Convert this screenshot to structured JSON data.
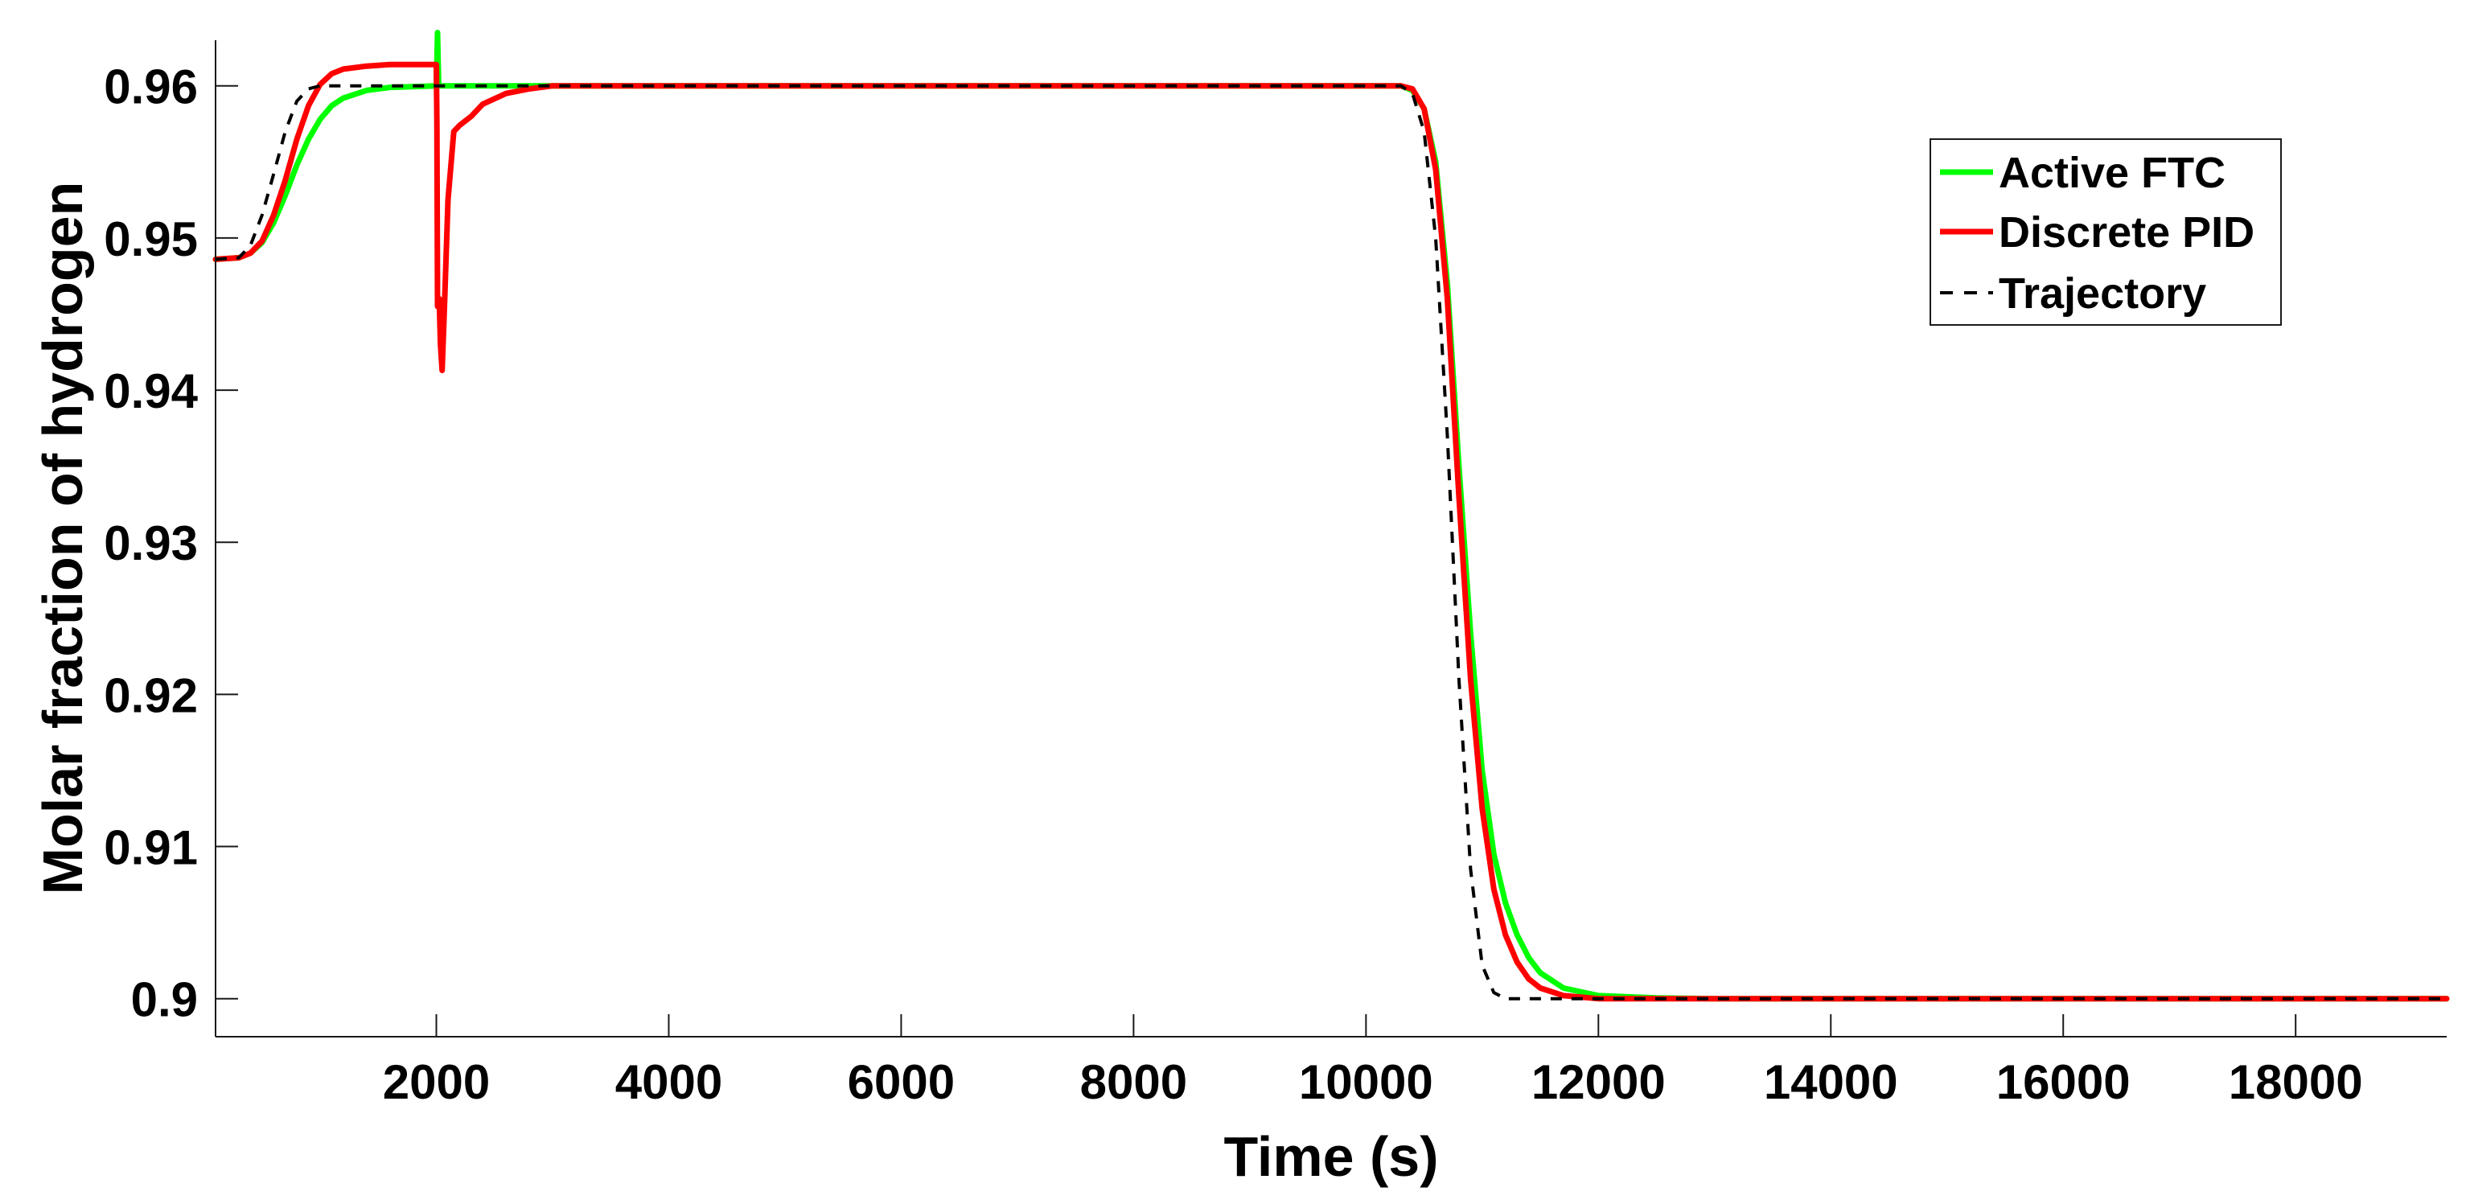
{
  "chart_data": {
    "type": "line",
    "xlabel": "Time (s)",
    "ylabel": "Molar fraction of hydrogen",
    "xlim": [
      100,
      19300
    ],
    "ylim": [
      0.8975,
      0.963
    ],
    "xticks": [
      2000,
      4000,
      6000,
      8000,
      10000,
      12000,
      14000,
      16000,
      18000
    ],
    "xtick_labels": [
      "2000",
      "4000",
      "6000",
      "8000",
      "10000",
      "12000",
      "14000",
      "16000",
      "18000"
    ],
    "yticks": [
      0.9,
      0.91,
      0.92,
      0.93,
      0.94,
      0.95,
      0.96
    ],
    "ytick_labels": [
      "0.9",
      "0.91",
      "0.92",
      "0.93",
      "0.94",
      "0.95",
      "0.96"
    ],
    "grid": false,
    "legend_position": "top-right",
    "series": [
      {
        "name": "Active FTC",
        "color": "#00ff00",
        "style": "solid",
        "points": [
          [
            100,
            0.9486
          ],
          [
            300,
            0.9487
          ],
          [
            400,
            0.949
          ],
          [
            500,
            0.9497
          ],
          [
            600,
            0.951
          ],
          [
            700,
            0.9528
          ],
          [
            800,
            0.9548
          ],
          [
            900,
            0.9565
          ],
          [
            1000,
            0.9578
          ],
          [
            1100,
            0.9587
          ],
          [
            1200,
            0.9592
          ],
          [
            1400,
            0.9597
          ],
          [
            1600,
            0.9599
          ],
          [
            1800,
            0.95995
          ],
          [
            2000,
            0.96
          ],
          [
            2010,
            0.9635
          ],
          [
            2020,
            0.96
          ],
          [
            2200,
            0.96
          ],
          [
            10000,
            0.96
          ],
          [
            10300,
            0.96
          ],
          [
            10400,
            0.9597
          ],
          [
            10500,
            0.9585
          ],
          [
            10600,
            0.955
          ],
          [
            10700,
            0.947
          ],
          [
            10800,
            0.935
          ],
          [
            10900,
            0.924
          ],
          [
            11000,
            0.915
          ],
          [
            11100,
            0.9095
          ],
          [
            11200,
            0.9063
          ],
          [
            11300,
            0.9042
          ],
          [
            11400,
            0.9027
          ],
          [
            11500,
            0.9017
          ],
          [
            11700,
            0.9007
          ],
          [
            12000,
            0.9002
          ],
          [
            12500,
            0.90005
          ],
          [
            13000,
            0.9
          ],
          [
            19300,
            0.9
          ]
        ]
      },
      {
        "name": "Discrete PID",
        "color": "#ff0000",
        "style": "solid",
        "points": [
          [
            100,
            0.9486
          ],
          [
            300,
            0.9487
          ],
          [
            400,
            0.949
          ],
          [
            500,
            0.9498
          ],
          [
            600,
            0.9515
          ],
          [
            700,
            0.9538
          ],
          [
            800,
            0.9565
          ],
          [
            900,
            0.9587
          ],
          [
            1000,
            0.9601
          ],
          [
            1100,
            0.9608
          ],
          [
            1200,
            0.9611
          ],
          [
            1400,
            0.9613
          ],
          [
            1600,
            0.9614
          ],
          [
            1800,
            0.9614
          ],
          [
            2000,
            0.9614
          ],
          [
            2005,
            0.9575
          ],
          [
            2010,
            0.9455
          ],
          [
            2025,
            0.946
          ],
          [
            2035,
            0.943
          ],
          [
            2050,
            0.9413
          ],
          [
            2070,
            0.9455
          ],
          [
            2100,
            0.9525
          ],
          [
            2150,
            0.957
          ],
          [
            2200,
            0.9574
          ],
          [
            2300,
            0.958
          ],
          [
            2400,
            0.9588
          ],
          [
            2600,
            0.9595
          ],
          [
            2800,
            0.9598
          ],
          [
            3000,
            0.96
          ],
          [
            10000,
            0.96
          ],
          [
            10300,
            0.96
          ],
          [
            10400,
            0.9598
          ],
          [
            10500,
            0.9585
          ],
          [
            10600,
            0.9545
          ],
          [
            10700,
            0.946
          ],
          [
            10800,
            0.933
          ],
          [
            10900,
            0.921
          ],
          [
            11000,
            0.9125
          ],
          [
            11100,
            0.9072
          ],
          [
            11200,
            0.9042
          ],
          [
            11300,
            0.9024
          ],
          [
            11400,
            0.9013
          ],
          [
            11500,
            0.9007
          ],
          [
            11700,
            0.9002
          ],
          [
            12000,
            0.9
          ],
          [
            19300,
            0.9
          ]
        ]
      },
      {
        "name": "Trajectory",
        "color": "#000000",
        "style": "dashed",
        "points": [
          [
            100,
            0.9486
          ],
          [
            300,
            0.9487
          ],
          [
            400,
            0.9495
          ],
          [
            500,
            0.9515
          ],
          [
            600,
            0.9542
          ],
          [
            700,
            0.957
          ],
          [
            800,
            0.959
          ],
          [
            900,
            0.9598
          ],
          [
            1000,
            0.96
          ],
          [
            10000,
            0.96
          ],
          [
            10300,
            0.96
          ],
          [
            10400,
            0.9595
          ],
          [
            10500,
            0.957
          ],
          [
            10600,
            0.95
          ],
          [
            10700,
            0.937
          ],
          [
            10800,
            0.921
          ],
          [
            10900,
            0.9085
          ],
          [
            11000,
            0.9022
          ],
          [
            11100,
            0.9004
          ],
          [
            11200,
            0.9
          ],
          [
            19300,
            0.9
          ]
        ]
      }
    ]
  }
}
